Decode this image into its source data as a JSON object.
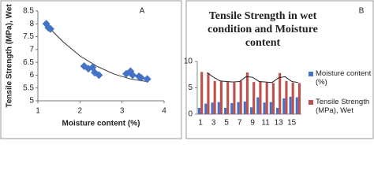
{
  "chart_data": [
    {
      "type": "scatter",
      "label": "A",
      "x_label": "Moisture content (%)",
      "y_label": "Tensile Strength (MPa), Wet",
      "x": [
        1.2,
        1.25,
        1.3,
        2.1,
        2.2,
        2.3,
        2.35,
        2.45,
        3.1,
        3.2,
        3.25,
        3.4,
        3.45,
        3.6
      ],
      "values": [
        8.0,
        7.85,
        7.8,
        6.35,
        6.25,
        6.3,
        6.1,
        6.0,
        6.05,
        6.15,
        6.0,
        5.95,
        5.9,
        5.85
      ],
      "color": "#4472c4",
      "trendline": {
        "x": [
          1.2,
          1.6,
          2.0,
          2.4,
          2.8,
          3.2,
          3.6
        ],
        "values": [
          7.95,
          7.3,
          6.75,
          6.35,
          6.05,
          5.85,
          5.75
        ],
        "color": "#333333"
      },
      "xlim": [
        1,
        4
      ],
      "xticks": [
        1,
        2,
        3,
        4
      ],
      "ylim": [
        5,
        8.5
      ],
      "yticks": [
        5,
        5.5,
        6,
        6.5,
        7,
        7.5,
        8,
        8.5
      ]
    },
    {
      "type": "bar",
      "label": "B",
      "title": "Tensile Strength in wet condition and Moisture content",
      "categories": [
        1,
        null,
        3,
        null,
        5,
        null,
        7,
        null,
        9,
        null,
        11,
        null,
        13,
        null,
        15,
        null
      ],
      "series": [
        {
          "name": "Moisture content (%)",
          "color": "#4472c4",
          "values": [
            1.2,
            2.0,
            2.2,
            2.3,
            1.2,
            2.1,
            2.3,
            2.4,
            1.3,
            3.2,
            2.2,
            2.3,
            1.2,
            3.0,
            3.3,
            3.2
          ]
        },
        {
          "name": "Tensile Strength (MPa), Wet",
          "color": "#c0504d",
          "values": [
            8.0,
            7.8,
            6.3,
            6.2,
            6.1,
            6.0,
            6.3,
            7.9,
            6.1,
            6.2,
            6.0,
            5.9,
            7.8,
            6.3,
            6.0,
            5.9
          ]
        }
      ],
      "trendline": {
        "values": [
          null,
          7.9,
          7.0,
          6.3,
          6.2,
          6.1,
          6.2,
          7.1,
          7.0,
          6.2,
          6.1,
          6.0,
          6.9,
          7.1,
          6.2,
          6.0
        ],
        "color": "#222222"
      },
      "ylim": [
        0,
        10
      ],
      "yticks": [
        0,
        5,
        10
      ]
    }
  ]
}
